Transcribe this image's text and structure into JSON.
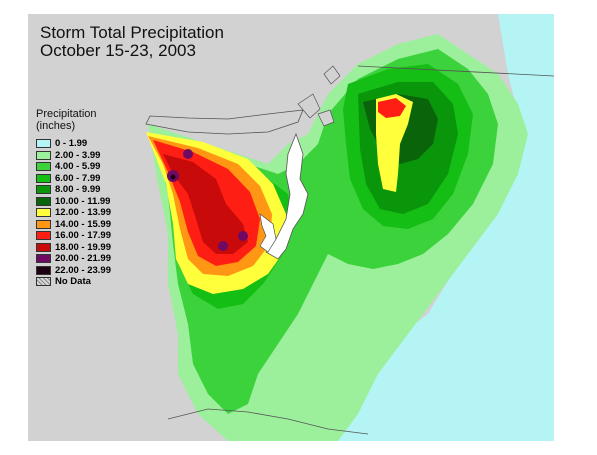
{
  "title": {
    "line1": "Storm Total Precipitation",
    "line2": "October 15-23, 2003"
  },
  "legend": {
    "title_line1": "Precipitation",
    "title_line2": "(inches)",
    "items": [
      {
        "label": "0 - 1.99",
        "color": "#b4f4f4"
      },
      {
        "label": "2.00 - 3.99",
        "color": "#9cf09c"
      },
      {
        "label": "4.00 - 5.99",
        "color": "#3cd23c"
      },
      {
        "label": "6.00 - 7.99",
        "color": "#14be14"
      },
      {
        "label": "8.00 - 9.99",
        "color": "#0a960a"
      },
      {
        "label": "10.00 - 11.99",
        "color": "#0a640a"
      },
      {
        "label": "12.00 - 13.99",
        "color": "#ffff3c"
      },
      {
        "label": "14.00 - 15.99",
        "color": "#ff9614"
      },
      {
        "label": "16.00 - 17.99",
        "color": "#ff1e14"
      },
      {
        "label": "18.00 - 19.99",
        "color": "#c80a0a"
      },
      {
        "label": "20.00 - 21.99",
        "color": "#6e0a64"
      },
      {
        "label": "22.00 - 23.99",
        "color": "#1e0014"
      },
      {
        "label": "No Data",
        "color": "#d8d8d8",
        "pattern": "hatch"
      }
    ]
  },
  "colors": {
    "land_background": "#d2d2d2",
    "water": "#ffffff"
  }
}
